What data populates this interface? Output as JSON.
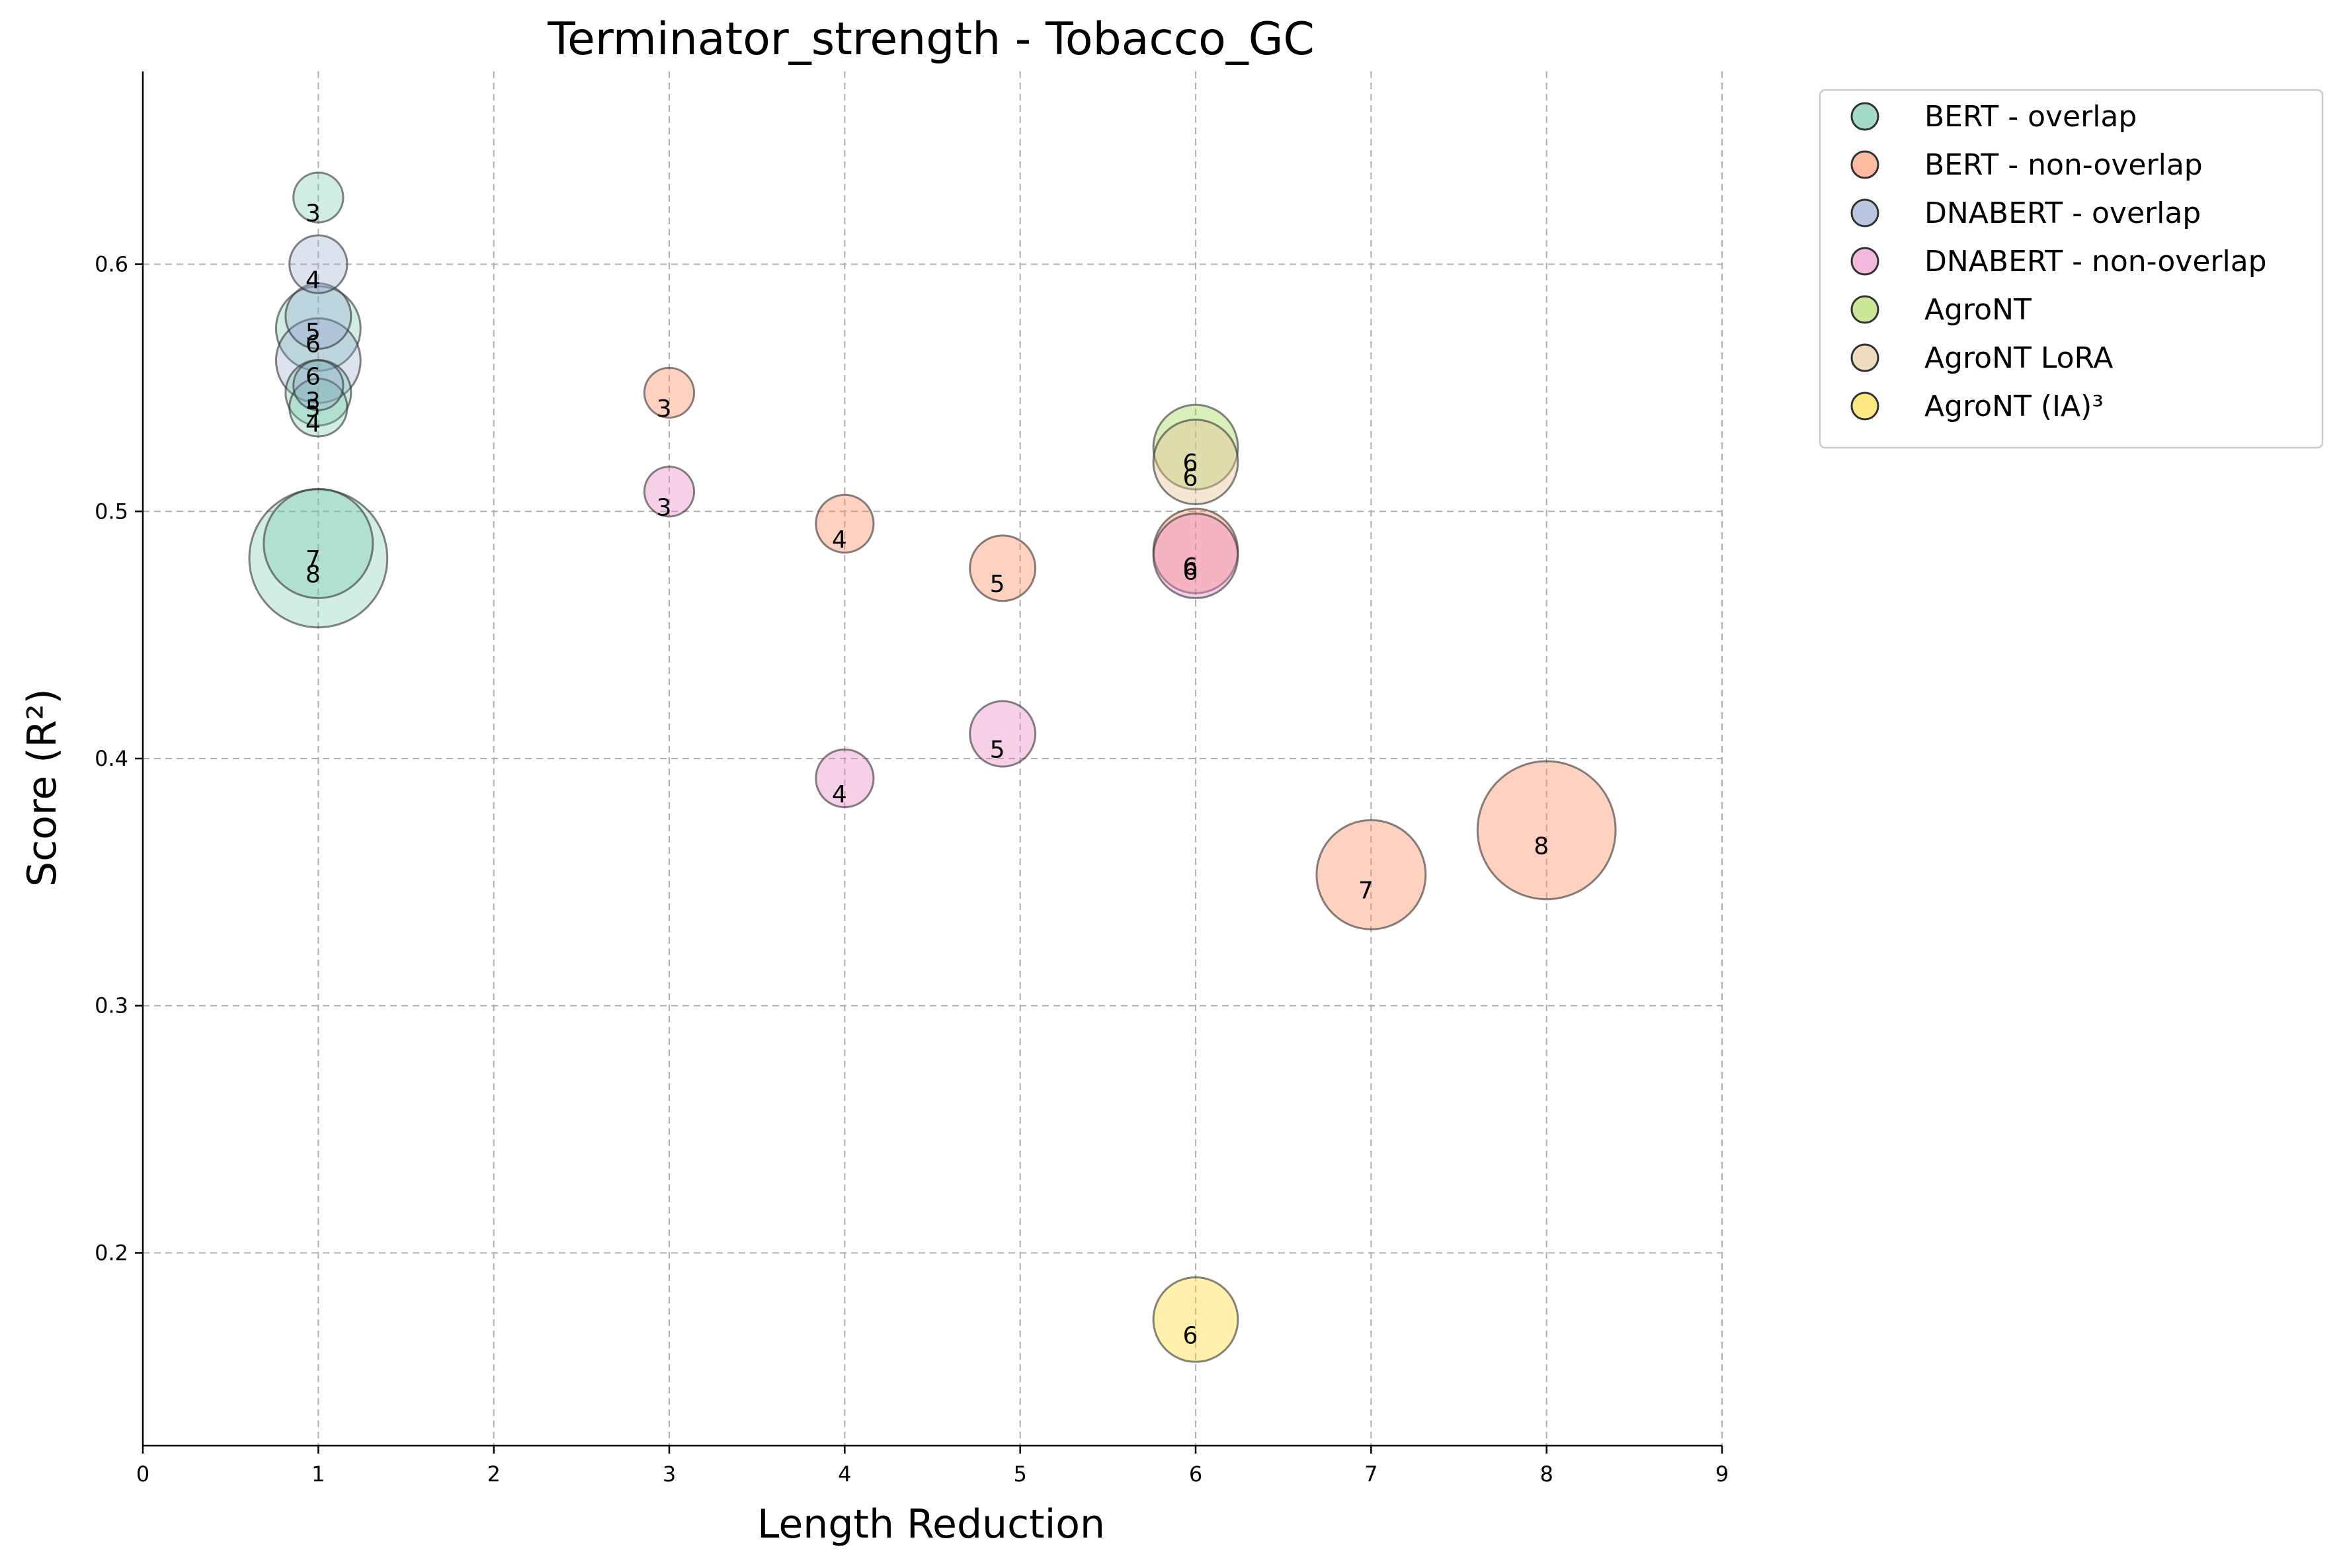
{
  "chart_data": {
    "type": "scatter",
    "title": "Terminator_strength - Tobacco_GC",
    "xlabel": "Length Reduction",
    "ylabel": "Score (R²)",
    "xlim": [
      0,
      9
    ],
    "ylim": [
      0.122,
      0.678
    ],
    "xticks": [
      0,
      1,
      2,
      3,
      4,
      5,
      6,
      7,
      8,
      9
    ],
    "yticks": [
      0.2,
      0.3,
      0.4,
      0.5,
      0.6
    ],
    "ytick_labels": [
      "0.2",
      "0.3",
      "0.4",
      "0.5",
      "0.6"
    ],
    "grid": true,
    "legend_position": "outside top-right",
    "series": [
      {
        "name": "BERT - overlap",
        "color": "#66c2a5",
        "alpha": 0.3,
        "points": [
          {
            "x": 1,
            "y": 0.627,
            "label": "3",
            "size": 0.052
          },
          {
            "x": 1,
            "y": 0.542,
            "label": "4",
            "size": 0.07
          },
          {
            "x": 1,
            "y": 0.548,
            "label": "5",
            "size": 0.09
          },
          {
            "x": 1,
            "y": 0.574,
            "label": "6",
            "size": 0.15
          },
          {
            "x": 1,
            "y": 0.487,
            "label": "7",
            "size": 0.25
          },
          {
            "x": 1,
            "y": 0.481,
            "label": "8",
            "size": 0.4
          }
        ]
      },
      {
        "name": "BERT - non-overlap",
        "color": "#fc8d62",
        "alpha": 0.4,
        "points": [
          {
            "x": 3,
            "y": 0.548,
            "label": "3",
            "size": 0.052
          },
          {
            "x": 4,
            "y": 0.495,
            "label": "4",
            "size": 0.07
          },
          {
            "x": 4.9,
            "y": 0.477,
            "label": "5",
            "size": 0.09
          },
          {
            "x": 6,
            "y": 0.484,
            "label": "6",
            "size": 0.15
          },
          {
            "x": 7,
            "y": 0.353,
            "label": "7",
            "size": 0.25
          },
          {
            "x": 8,
            "y": 0.371,
            "label": "8",
            "size": 0.4
          }
        ]
      },
      {
        "name": "DNABERT - overlap",
        "color": "#8da0cb",
        "alpha": 0.3,
        "points": [
          {
            "x": 1,
            "y": 0.6,
            "label": "4",
            "size": 0.07
          },
          {
            "x": 1,
            "y": 0.579,
            "label": "5",
            "size": 0.09
          },
          {
            "x": 1,
            "y": 0.561,
            "label": "6",
            "size": 0.15
          },
          {
            "x": 1,
            "y": 0.551,
            "label": "3",
            "size": 0.052
          }
        ]
      },
      {
        "name": "DNABERT - non-overlap",
        "color": "#e78ac3",
        "alpha": 0.4,
        "points": [
          {
            "x": 3,
            "y": 0.508,
            "label": "3",
            "size": 0.052
          },
          {
            "x": 4,
            "y": 0.392,
            "label": "4",
            "size": 0.07
          },
          {
            "x": 4.9,
            "y": 0.41,
            "label": "5",
            "size": 0.09
          },
          {
            "x": 6,
            "y": 0.482,
            "label": "6",
            "size": 0.15
          }
        ]
      },
      {
        "name": "AgroNT",
        "color": "#a6d854",
        "alpha": 0.4,
        "points": [
          {
            "x": 6,
            "y": 0.526,
            "label": "6",
            "size": 0.15
          }
        ]
      },
      {
        "name": "AgroNT LoRA",
        "color": "#e5c494",
        "alpha": 0.4,
        "points": [
          {
            "x": 6,
            "y": 0.52,
            "label": "6",
            "size": 0.15
          }
        ]
      },
      {
        "name": "AgroNT (IA)³",
        "color": "#ffd92f",
        "alpha": 0.4,
        "points": [
          {
            "x": 6,
            "y": 0.173,
            "label": "6",
            "size": 0.15
          }
        ]
      }
    ]
  }
}
